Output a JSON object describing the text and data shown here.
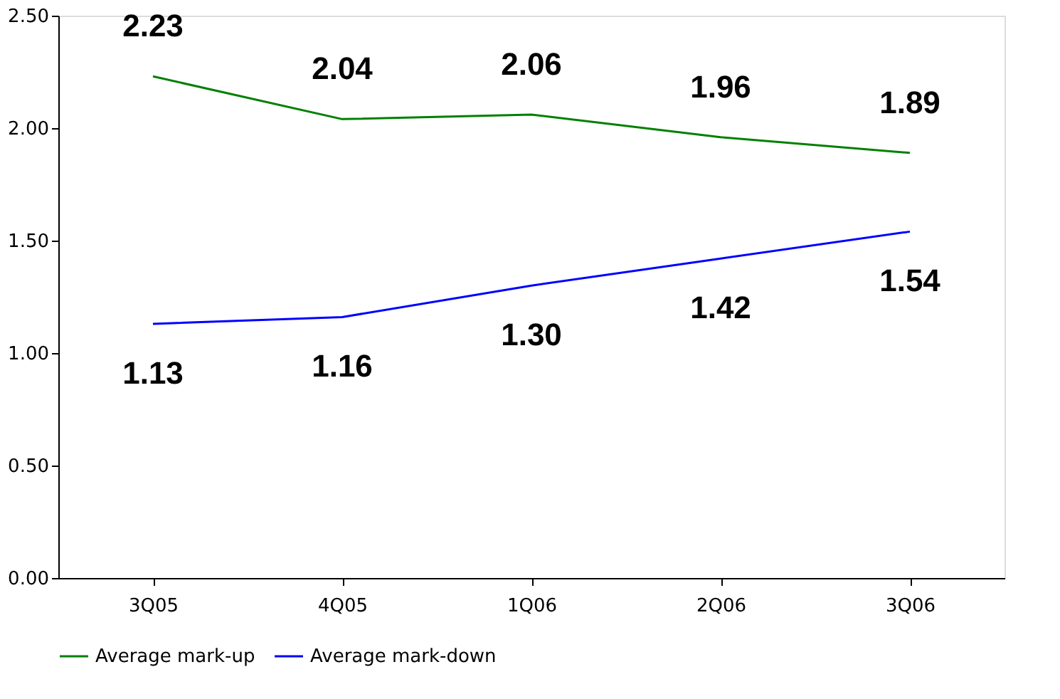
{
  "chart_data": {
    "type": "line",
    "categories": [
      "3Q05",
      "4Q05",
      "1Q06",
      "2Q06",
      "3Q06"
    ],
    "series": [
      {
        "name": "Average mark-up",
        "color": "#008000",
        "values": [
          2.23,
          2.04,
          2.06,
          1.96,
          1.89
        ],
        "value_labels": [
          "2.23",
          "2.04",
          "2.06",
          "1.96",
          "1.89"
        ]
      },
      {
        "name": "Average mark-down",
        "color": "#0000ff",
        "values": [
          1.13,
          1.16,
          1.3,
          1.42,
          1.54
        ],
        "value_labels": [
          "1.13",
          "1.16",
          "1.30",
          "1.42",
          "1.54"
        ]
      }
    ],
    "ylim": [
      0,
      2.5
    ],
    "yticks": [
      {
        "value": 0,
        "label": "0.00"
      },
      {
        "value": 0.5,
        "label": "0.50"
      },
      {
        "value": 1,
        "label": "1.00"
      },
      {
        "value": 1.5,
        "label": "1.50"
      },
      {
        "value": 2,
        "label": "2.00"
      },
      {
        "value": 2.5,
        "label": "2.50"
      }
    ],
    "grid": false,
    "legend": "bottom",
    "marker": "none"
  }
}
